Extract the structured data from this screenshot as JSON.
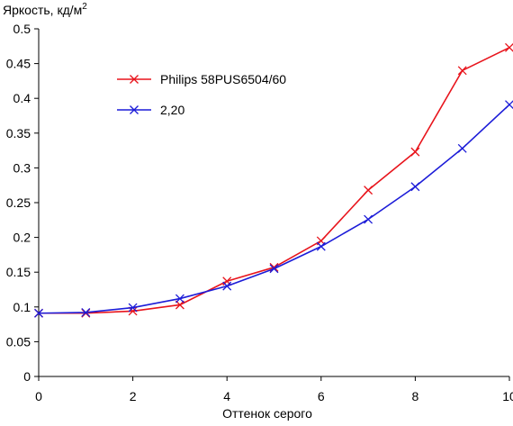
{
  "chart_data": {
    "type": "line",
    "title": "",
    "xlabel": "Оттенок серого",
    "ylabel_main": "Яркость, кд/м",
    "ylabel_sup": "2",
    "xlim": [
      0,
      10
    ],
    "ylim": [
      0,
      0.5
    ],
    "x_ticks": [
      "0",
      "2",
      "4",
      "6",
      "8",
      "10"
    ],
    "y_ticks": [
      "0",
      "0.05",
      "0.1",
      "0.15",
      "0.2",
      "0.25",
      "0.3",
      "0.35",
      "0.4",
      "0.45",
      "0.5"
    ],
    "grid": false,
    "legend_position": "upper-left",
    "series": [
      {
        "name": "Philips 58PUS6504/60",
        "color": "#e8141c",
        "marker": "x",
        "x": [
          0,
          1,
          2,
          3,
          4,
          5,
          6,
          7,
          8,
          9,
          10
        ],
        "y": [
          0.091,
          0.091,
          0.094,
          0.103,
          0.137,
          0.157,
          0.195,
          0.268,
          0.323,
          0.44,
          0.473
        ]
      },
      {
        "name": "2,20",
        "color": "#1c1cd8",
        "marker": "x",
        "x": [
          0,
          1,
          2,
          3,
          4,
          5,
          6,
          7,
          8,
          9,
          10
        ],
        "y": [
          0.091,
          0.092,
          0.099,
          0.112,
          0.13,
          0.155,
          0.187,
          0.226,
          0.273,
          0.328,
          0.391
        ]
      }
    ]
  }
}
